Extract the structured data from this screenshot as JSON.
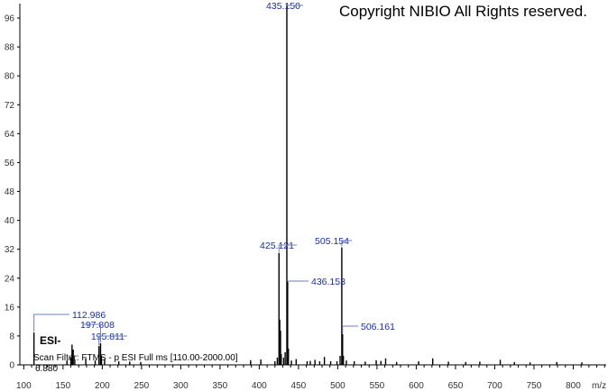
{
  "header": {
    "copyright": "Copyright NIBIO All Rights reserved."
  },
  "spectrum_info": {
    "ionization": "ESI-",
    "scan_filter": "Scan Filter: FTMS - p ESI Full ms [110.00-2000.00]",
    "intensity": "6.880"
  },
  "colors": {
    "peaks": "#000000",
    "labels": "#1a2f9c",
    "leaders": "#6b7fc0"
  },
  "chart_data": {
    "type": "bar",
    "xlabel": "m/z",
    "ylabel": "",
    "xlim": [
      95,
      842
    ],
    "ylim": [
      0,
      100
    ],
    "xticks": [
      100,
      150,
      200,
      250,
      300,
      350,
      400,
      450,
      500,
      550,
      600,
      650,
      700,
      750,
      800
    ],
    "yticks": [
      0,
      8,
      16,
      24,
      32,
      40,
      48,
      56,
      64,
      72,
      80,
      88,
      96
    ],
    "peaks": [
      {
        "mz": 112.986,
        "rel": 9,
        "label": "112.986"
      },
      {
        "mz": 155.0,
        "rel": 1.2
      },
      {
        "mz": 160.0,
        "rel": 2.0
      },
      {
        "mz": 161.5,
        "rel": 5.6
      },
      {
        "mz": 163.0,
        "rel": 4.2
      },
      {
        "mz": 165.0,
        "rel": 1.5
      },
      {
        "mz": 179.0,
        "rel": 1.8
      },
      {
        "mz": 191.0,
        "rel": 1.2
      },
      {
        "mz": 195.811,
        "rel": 5.2,
        "label": "195.811"
      },
      {
        "mz": 197.808,
        "rel": 6.0,
        "label": "197.808"
      },
      {
        "mz": 199.0,
        "rel": 2.5
      },
      {
        "mz": 203.0,
        "rel": 1.6
      },
      {
        "mz": 221.0,
        "rel": 1.0
      },
      {
        "mz": 235.0,
        "rel": 0.9
      },
      {
        "mz": 249.0,
        "rel": 0.8
      },
      {
        "mz": 389.0,
        "rel": 1.3
      },
      {
        "mz": 402.0,
        "rel": 1.5
      },
      {
        "mz": 420.0,
        "rel": 1.0
      },
      {
        "mz": 423.0,
        "rel": 2.0
      },
      {
        "mz": 425.121,
        "rel": 31,
        "label": "425.121"
      },
      {
        "mz": 426.12,
        "rel": 12.5
      },
      {
        "mz": 427.1,
        "rel": 9.5
      },
      {
        "mz": 428.0,
        "rel": 3.0
      },
      {
        "mz": 431.0,
        "rel": 2.0
      },
      {
        "mz": 433.0,
        "rel": 3.5
      },
      {
        "mz": 435.15,
        "rel": 100,
        "label": "435.150"
      },
      {
        "mz": 436.153,
        "rel": 23,
        "label": "436.153"
      },
      {
        "mz": 437.15,
        "rel": 4.5
      },
      {
        "mz": 441.0,
        "rel": 1.2
      },
      {
        "mz": 447.0,
        "rel": 1.6
      },
      {
        "mz": 461.0,
        "rel": 1.0
      },
      {
        "mz": 465.0,
        "rel": 1.1
      },
      {
        "mz": 471.0,
        "rel": 1.4
      },
      {
        "mz": 477.0,
        "rel": 1.0
      },
      {
        "mz": 483.0,
        "rel": 2.2
      },
      {
        "mz": 491.0,
        "rel": 1.0
      },
      {
        "mz": 499.0,
        "rel": 1.0
      },
      {
        "mz": 503.0,
        "rel": 2.5
      },
      {
        "mz": 505.154,
        "rel": 32.5,
        "label": "505.154"
      },
      {
        "mz": 506.161,
        "rel": 8.5,
        "label": "506.161"
      },
      {
        "mz": 507.16,
        "rel": 2.5
      },
      {
        "mz": 511.0,
        "rel": 1.2
      },
      {
        "mz": 521.0,
        "rel": 1.0
      },
      {
        "mz": 535.0,
        "rel": 0.9
      },
      {
        "mz": 549.0,
        "rel": 1.3
      },
      {
        "mz": 555.0,
        "rel": 1.1
      },
      {
        "mz": 561.0,
        "rel": 1.8
      },
      {
        "mz": 575.0,
        "rel": 0.8
      },
      {
        "mz": 603.0,
        "rel": 1.0
      },
      {
        "mz": 621.0,
        "rel": 1.8
      },
      {
        "mz": 641.0,
        "rel": 0.9
      },
      {
        "mz": 663.0,
        "rel": 0.8
      },
      {
        "mz": 681.0,
        "rel": 0.9
      },
      {
        "mz": 707.0,
        "rel": 1.4
      },
      {
        "mz": 725.0,
        "rel": 0.8
      },
      {
        "mz": 745.0,
        "rel": 0.7
      },
      {
        "mz": 779.0,
        "rel": 0.8
      },
      {
        "mz": 811.0,
        "rel": 0.7
      }
    ]
  }
}
